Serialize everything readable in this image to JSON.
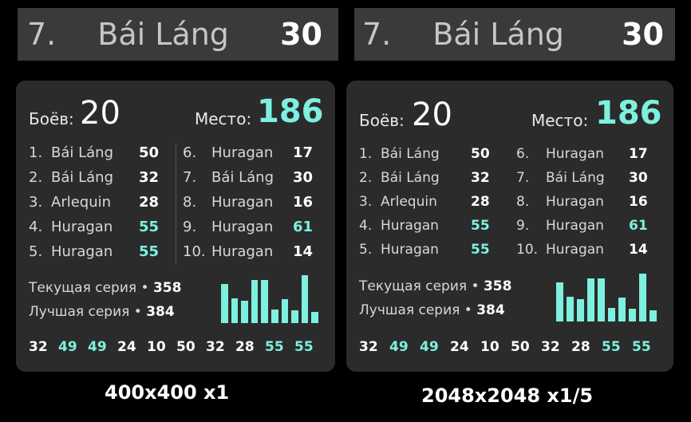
{
  "panels": [
    {
      "id": "left",
      "banner": {
        "rank": "7.",
        "name": "Bái Láng",
        "score": "30"
      },
      "battles_label": "Боёв:",
      "battles_value": "20",
      "place_label": "Место:",
      "place_value": "186",
      "list_left": [
        {
          "num": "1.",
          "name": "Bái Láng",
          "value": "50",
          "hi": false
        },
        {
          "num": "2.",
          "name": "Bái Láng",
          "value": "32",
          "hi": false
        },
        {
          "num": "3.",
          "name": "Arlequin",
          "value": "28",
          "hi": false
        },
        {
          "num": "4.",
          "name": "Huragan",
          "value": "55",
          "hi": true
        },
        {
          "num": "5.",
          "name": "Huragan",
          "value": "55",
          "hi": true
        }
      ],
      "list_right": [
        {
          "num": "6.",
          "name": "Huragan",
          "value": "17",
          "hi": false
        },
        {
          "num": "7.",
          "name": "Bái Láng",
          "value": "30",
          "hi": false
        },
        {
          "num": "8.",
          "name": "Huragan",
          "value": "16",
          "hi": false
        },
        {
          "num": "9.",
          "name": "Huragan",
          "value": "61",
          "hi": true
        },
        {
          "num": "10.",
          "name": "Huragan",
          "value": "14",
          "hi": false
        }
      ],
      "current_streak_label": "Текущая серия",
      "current_streak_value": "358",
      "best_streak_label": "Лучшая серия",
      "best_streak_value": "384",
      "bars": [
        50,
        32,
        28,
        55,
        55,
        17,
        30,
        16,
        61,
        14
      ],
      "scores": [
        {
          "v": "32",
          "hi": false
        },
        {
          "v": "49",
          "hi": true
        },
        {
          "v": "49",
          "hi": true
        },
        {
          "v": "24",
          "hi": false
        },
        {
          "v": "10",
          "hi": false
        },
        {
          "v": "50",
          "hi": false
        },
        {
          "v": "32",
          "hi": false
        },
        {
          "v": "28",
          "hi": false
        },
        {
          "v": "55",
          "hi": true
        },
        {
          "v": "55",
          "hi": true
        }
      ],
      "caption": "400x400 x1"
    },
    {
      "id": "right",
      "banner": {
        "rank": "7.",
        "name": "Bái Láng",
        "score": "30"
      },
      "battles_label": "Боёв:",
      "battles_value": "20",
      "place_label": "Место:",
      "place_value": "186",
      "list_left": [
        {
          "num": "1.",
          "name": "Bái Láng",
          "value": "50",
          "hi": false
        },
        {
          "num": "2.",
          "name": "Bái Láng",
          "value": "32",
          "hi": false
        },
        {
          "num": "3.",
          "name": "Arlequin",
          "value": "28",
          "hi": false
        },
        {
          "num": "4.",
          "name": "Huragan",
          "value": "55",
          "hi": true
        },
        {
          "num": "5.",
          "name": "Huragan",
          "value": "55",
          "hi": true
        }
      ],
      "list_right": [
        {
          "num": "6.",
          "name": "Huragan",
          "value": "17",
          "hi": false
        },
        {
          "num": "7.",
          "name": "Bái Láng",
          "value": "30",
          "hi": false
        },
        {
          "num": "8.",
          "name": "Huragan",
          "value": "16",
          "hi": false
        },
        {
          "num": "9.",
          "name": "Huragan",
          "value": "61",
          "hi": true
        },
        {
          "num": "10.",
          "name": "Huragan",
          "value": "14",
          "hi": false
        }
      ],
      "current_streak_label": "Текущая серия",
      "current_streak_value": "358",
      "best_streak_label": "Лучшая серия",
      "best_streak_value": "384",
      "bars": [
        50,
        32,
        28,
        55,
        55,
        17,
        30,
        16,
        61,
        14
      ],
      "scores": [
        {
          "v": "32",
          "hi": false
        },
        {
          "v": "49",
          "hi": true
        },
        {
          "v": "49",
          "hi": true
        },
        {
          "v": "24",
          "hi": false
        },
        {
          "v": "10",
          "hi": false
        },
        {
          "v": "50",
          "hi": false
        },
        {
          "v": "32",
          "hi": false
        },
        {
          "v": "28",
          "hi": false
        },
        {
          "v": "55",
          "hi": true
        },
        {
          "v": "55",
          "hi": true
        }
      ],
      "caption": "2048x2048 x1/5"
    }
  ],
  "colors": {
    "accent": "#7df0e0",
    "card": "#2b2b2b",
    "banner": "#3a3a3a",
    "background": "#000000"
  }
}
